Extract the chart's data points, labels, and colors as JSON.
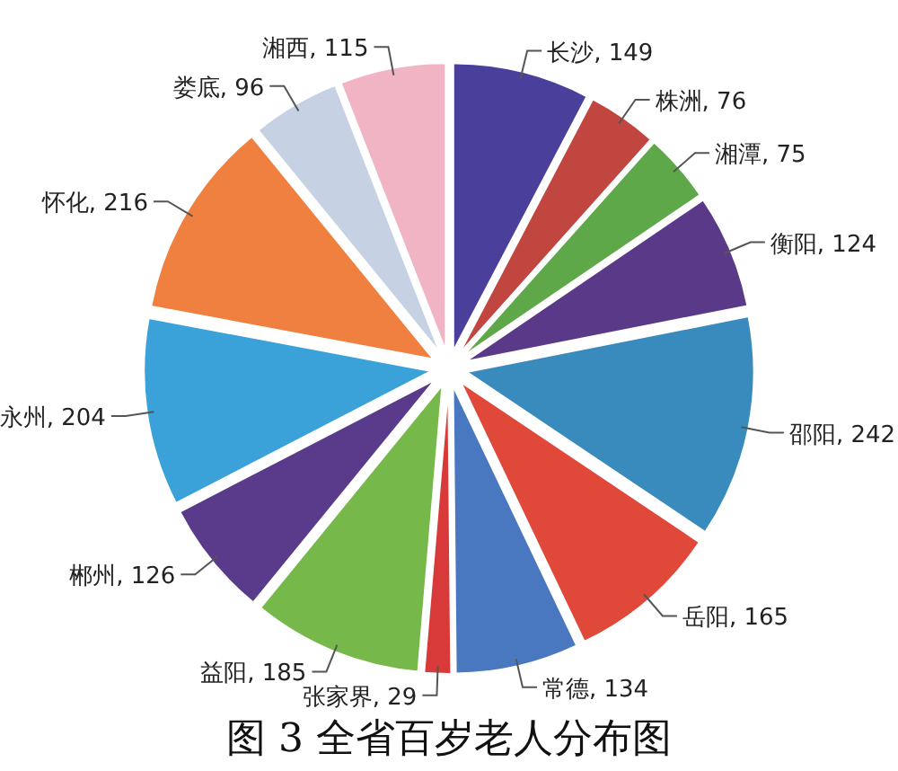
{
  "chart_data": {
    "type": "pie",
    "title": "图 3 全省百岁老人分布图",
    "categories": [
      "长沙",
      "株洲",
      "湘潭",
      "衡阳",
      "邵阳",
      "岳阳",
      "常德",
      "张家界",
      "益阳",
      "郴州",
      "永州",
      "怀化",
      "娄底",
      "湘西"
    ],
    "values": [
      149,
      76,
      75,
      124,
      242,
      165,
      134,
      29,
      185,
      126,
      204,
      216,
      96,
      115
    ],
    "value_labels": [
      ", 149",
      ", 76",
      ", 75",
      ", 124",
      ", 242",
      ", 165",
      ", 134",
      ", 29",
      ", 185",
      ", 126",
      ", 204",
      ", 216",
      ", 96",
      ", 115"
    ],
    "colors": [
      "#4b3f9c",
      "#c0463f",
      "#5fa84a",
      "#5a3a88",
      "#3a8bbd",
      "#e0483a",
      "#4a78c0",
      "#d83a3a",
      "#76b84a",
      "#5a3a8a",
      "#3aa2d8",
      "#f08040",
      "#c6d2e4",
      "#f0b4c4"
    ]
  }
}
